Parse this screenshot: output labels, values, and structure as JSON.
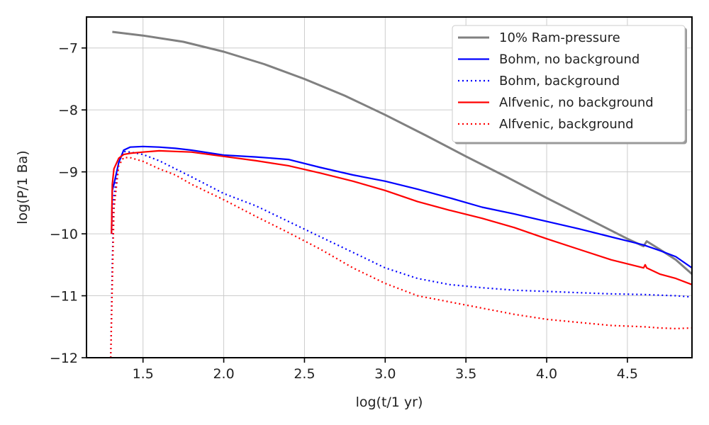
{
  "chart_data": {
    "type": "line",
    "title": "",
    "xlabel": "log(t/1 yr)",
    "ylabel": "log(P/1 Ba)",
    "xlim": [
      1.15,
      4.9
    ],
    "ylim": [
      -12,
      -6.5
    ],
    "grid": true,
    "legend_position": "top-right",
    "xticks": [
      1.5,
      2.0,
      2.5,
      3.0,
      3.5,
      4.0,
      4.5
    ],
    "xtick_labels": [
      "1.5",
      "2.0",
      "2.5",
      "3.0",
      "3.5",
      "4.0",
      "4.5"
    ],
    "yticks": [
      -12,
      -11,
      -10,
      -9,
      -8,
      -7
    ],
    "ytick_labels": [
      "−12",
      "−11",
      "−10",
      "−9",
      "−8",
      "−7"
    ],
    "series": [
      {
        "name": "10% Ram-pressure",
        "color": "#808080",
        "style": "solid",
        "x": [
          1.31,
          1.5,
          1.75,
          2.0,
          2.25,
          2.5,
          2.75,
          3.0,
          3.25,
          3.5,
          3.75,
          4.0,
          4.25,
          4.5,
          4.6,
          4.62,
          4.7,
          4.8,
          4.9
        ],
        "y": [
          -6.74,
          -6.8,
          -6.9,
          -7.06,
          -7.26,
          -7.5,
          -7.77,
          -8.08,
          -8.41,
          -8.75,
          -9.08,
          -9.42,
          -9.75,
          -10.08,
          -10.2,
          -10.12,
          -10.25,
          -10.42,
          -10.65
        ]
      },
      {
        "name": "Bohm, no background",
        "color": "#0000ff",
        "style": "solid",
        "x": [
          1.305,
          1.31,
          1.32,
          1.35,
          1.38,
          1.42,
          1.5,
          1.6,
          1.7,
          1.8,
          2.0,
          2.2,
          2.4,
          2.6,
          2.8,
          3.0,
          3.2,
          3.4,
          3.6,
          3.8,
          4.0,
          4.2,
          4.4,
          4.6,
          4.7,
          4.8,
          4.9
        ],
        "y": [
          -10.0,
          -9.3,
          -9.2,
          -8.85,
          -8.65,
          -8.6,
          -8.59,
          -8.6,
          -8.62,
          -8.65,
          -8.73,
          -8.76,
          -8.8,
          -8.93,
          -9.05,
          -9.15,
          -9.28,
          -9.42,
          -9.57,
          -9.68,
          -9.8,
          -9.92,
          -10.05,
          -10.18,
          -10.27,
          -10.37,
          -10.55
        ]
      },
      {
        "name": "Bohm, background",
        "color": "#0000ff",
        "style": "dotted",
        "x": [
          1.3,
          1.31,
          1.32,
          1.35,
          1.38,
          1.42,
          1.5,
          1.6,
          1.7,
          1.8,
          2.0,
          2.2,
          2.4,
          2.6,
          2.8,
          3.0,
          3.2,
          3.4,
          3.6,
          3.8,
          4.0,
          4.2,
          4.4,
          4.6,
          4.7,
          4.8,
          4.9
        ],
        "y": [
          -12.0,
          -10.5,
          -9.4,
          -8.85,
          -8.67,
          -8.68,
          -8.72,
          -8.82,
          -8.95,
          -9.08,
          -9.35,
          -9.55,
          -9.8,
          -10.05,
          -10.3,
          -10.55,
          -10.72,
          -10.82,
          -10.87,
          -10.91,
          -10.93,
          -10.95,
          -10.97,
          -10.98,
          -10.99,
          -11.0,
          -11.02
        ]
      },
      {
        "name": "Alfvenic, no background",
        "color": "#ff0000",
        "style": "solid",
        "x": [
          1.305,
          1.31,
          1.32,
          1.35,
          1.38,
          1.42,
          1.5,
          1.6,
          1.7,
          1.8,
          2.0,
          2.2,
          2.4,
          2.6,
          2.8,
          3.0,
          3.2,
          3.4,
          3.6,
          3.8,
          4.0,
          4.2,
          4.4,
          4.6,
          4.61,
          4.62,
          4.7,
          4.8,
          4.9
        ],
        "y": [
          -10.0,
          -9.2,
          -8.95,
          -8.78,
          -8.72,
          -8.7,
          -8.68,
          -8.66,
          -8.67,
          -8.68,
          -8.75,
          -8.82,
          -8.9,
          -9.02,
          -9.15,
          -9.3,
          -9.48,
          -9.62,
          -9.75,
          -9.9,
          -10.08,
          -10.25,
          -10.42,
          -10.55,
          -10.5,
          -10.55,
          -10.65,
          -10.72,
          -10.82
        ]
      },
      {
        "name": "Alfvenic, background",
        "color": "#ff0000",
        "style": "dotted",
        "x": [
          1.3,
          1.31,
          1.32,
          1.35,
          1.38,
          1.42,
          1.5,
          1.6,
          1.7,
          1.8,
          2.0,
          2.2,
          2.4,
          2.6,
          2.8,
          3.0,
          3.2,
          3.4,
          3.6,
          3.8,
          4.0,
          4.2,
          4.4,
          4.6,
          4.7,
          4.8,
          4.9
        ],
        "y": [
          -12.0,
          -10.8,
          -9.6,
          -8.9,
          -8.77,
          -8.77,
          -8.83,
          -8.95,
          -9.05,
          -9.2,
          -9.45,
          -9.72,
          -9.98,
          -10.25,
          -10.55,
          -10.8,
          -11.0,
          -11.1,
          -11.2,
          -11.3,
          -11.38,
          -11.43,
          -11.48,
          -11.5,
          -11.52,
          -11.53,
          -11.52
        ]
      }
    ]
  }
}
